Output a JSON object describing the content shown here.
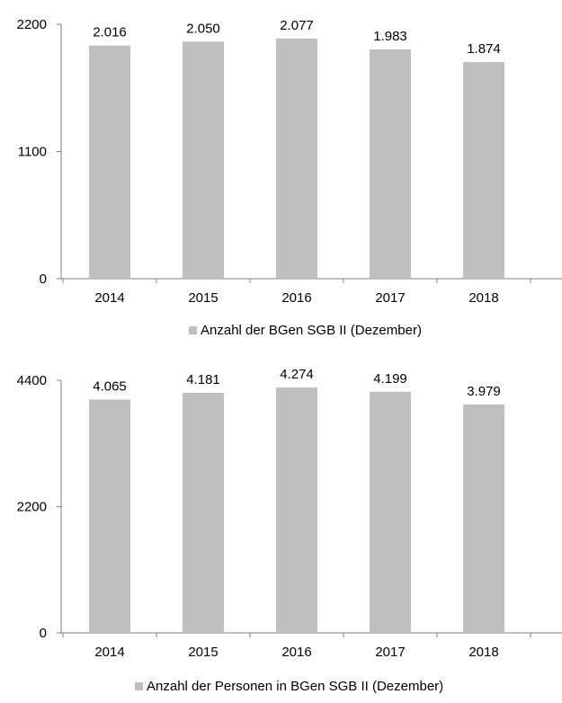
{
  "chart_data": [
    {
      "type": "bar",
      "categories": [
        "2014",
        "2015",
        "2016",
        "2017",
        "2018"
      ],
      "values": [
        2016,
        2050,
        2077,
        1983,
        1874
      ],
      "data_labels": [
        "2.016",
        "2.050",
        "2.077",
        "1.983",
        "1.874"
      ],
      "series": [
        {
          "name": "Anzahl der BGen SGB II (Dezember)",
          "values": [
            2016,
            2050,
            2077,
            1983,
            1874
          ]
        }
      ],
      "ylim": [
        0,
        2200
      ],
      "yticks": [
        "0",
        "1100",
        "2200"
      ],
      "grid": false,
      "legend_position": "bottom",
      "bar_color": "#bfbfbf"
    },
    {
      "type": "bar",
      "categories": [
        "2014",
        "2015",
        "2016",
        "2017",
        "2018"
      ],
      "values": [
        4065,
        4181,
        4274,
        4199,
        3979
      ],
      "data_labels": [
        "4.065",
        "4.181",
        "4.274",
        "4.199",
        "3.979"
      ],
      "series": [
        {
          "name": "Anzahl der Personen in BGen SGB II (Dezember)",
          "values": [
            4065,
            4181,
            4274,
            4199,
            3979
          ]
        }
      ],
      "ylim": [
        0,
        4400
      ],
      "yticks": [
        "0",
        "2200",
        "4400"
      ],
      "grid": false,
      "legend_position": "bottom",
      "bar_color": "#bfbfbf"
    }
  ]
}
